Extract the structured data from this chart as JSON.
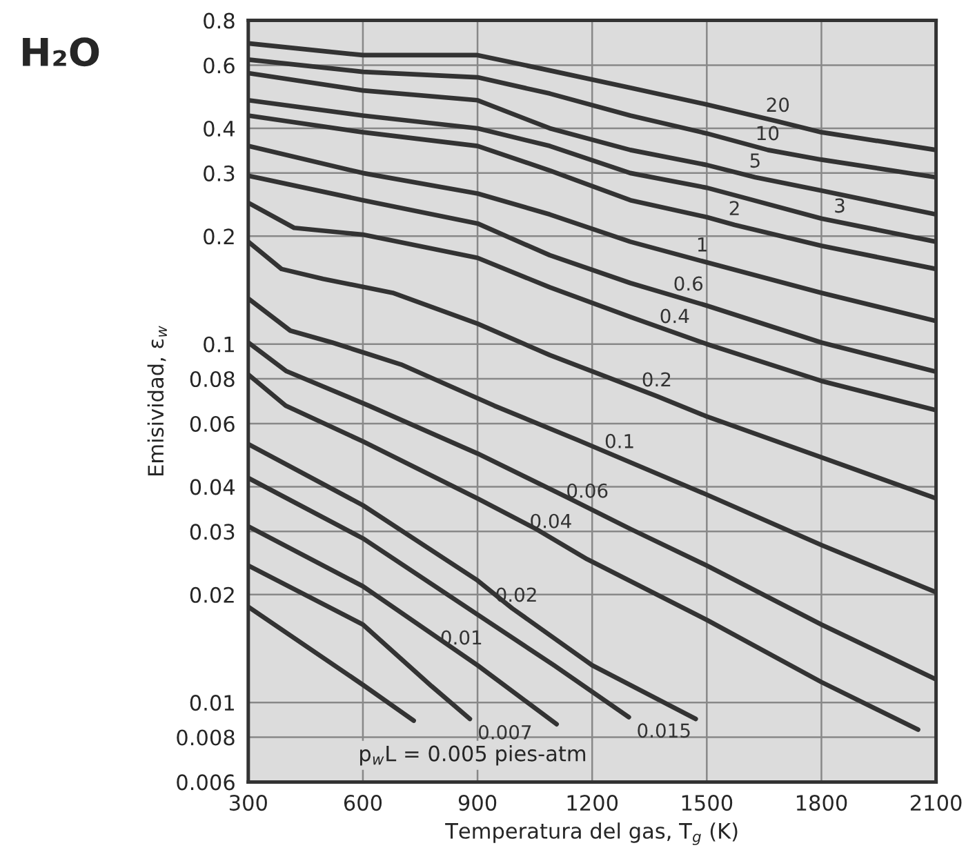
{
  "chart_data": {
    "type": "line",
    "title": "H₂O",
    "xlabel": "Temperatura del gas, T$_{g}$ (K)",
    "ylabel": "Emisividad, ε$_{w}$",
    "xlim": [
      300,
      2100
    ],
    "xticks": [
      300,
      600,
      900,
      1200,
      1500,
      1800,
      2100
    ],
    "ylim": [
      0.006,
      0.8
    ],
    "yticks": [
      0.006,
      0.008,
      0.01,
      0.02,
      0.03,
      0.04,
      0.06,
      0.08,
      0.1,
      0.2,
      0.3,
      0.4,
      0.6,
      0.8
    ],
    "log": "y",
    "grid": true,
    "legend": false,
    "marker": "none",
    "line_style": "solid",
    "annotations": [
      "p$_{w}$L = 0.005 pies-atm"
    ],
    "series": [
      {
        "name": "20",
        "color": "#333333",
        "x": [
          300,
          600,
          900,
          1089,
          1300,
          1500,
          1682,
          1800,
          2100
        ],
        "values": [
          0.69,
          0.64,
          0.64,
          0.58,
          0.519,
          0.466,
          0.419,
          0.39,
          0.348
        ]
      },
      {
        "name": "10",
        "color": "#333333",
        "x": [
          300,
          600,
          900,
          1089,
          1300,
          1500,
          1660,
          1800,
          2100
        ],
        "values": [
          0.622,
          0.575,
          0.555,
          0.5,
          0.434,
          0.387,
          0.348,
          0.327,
          0.292
        ]
      },
      {
        "name": "5",
        "color": "#333333",
        "x": [
          300,
          600,
          900,
          1089,
          1300,
          1500,
          1627,
          1800,
          2100
        ],
        "values": [
          0.57,
          0.51,
          0.479,
          0.4,
          0.348,
          0.316,
          0.292,
          0.268,
          0.23
        ]
      },
      {
        "name": "3",
        "color": "#333333",
        "x": [
          300,
          600,
          900,
          1089,
          1300,
          1500,
          1598,
          1800,
          2100
        ],
        "values": [
          0.479,
          0.434,
          0.4,
          0.357,
          0.3,
          0.273,
          0.256,
          0.224,
          0.193
        ]
      },
      {
        "name": "2",
        "color": "#333333",
        "x": [
          300,
          600,
          900,
          1089,
          1300,
          1500,
          1573,
          1800,
          2100
        ],
        "values": [
          0.434,
          0.39,
          0.357,
          0.305,
          0.252,
          0.226,
          0.215,
          0.188,
          0.162
        ]
      },
      {
        "name": "1",
        "color": "#333333",
        "x": [
          300,
          600,
          900,
          1089,
          1300,
          1500,
          1800,
          2100
        ],
        "values": [
          0.357,
          0.3,
          0.263,
          0.23,
          0.193,
          0.169,
          0.139,
          0.116
        ]
      },
      {
        "name": "0.6",
        "color": "#333333",
        "x": [
          300,
          600,
          900,
          1089,
          1300,
          1500,
          1800,
          2100
        ],
        "values": [
          0.295,
          0.252,
          0.217,
          0.177,
          0.148,
          0.128,
          0.101,
          0.0837
        ]
      },
      {
        "name": "0.4",
        "color": "#333333",
        "x": [
          300,
          420,
          600,
          900,
          1089,
          1300,
          1500,
          1800,
          2100
        ],
        "values": [
          0.248,
          0.211,
          0.202,
          0.174,
          0.144,
          0.119,
          0.1,
          0.0789,
          0.0654
        ]
      },
      {
        "name": "0.2",
        "color": "#333333",
        "x": [
          300,
          387,
          496,
          678,
          900,
          1089,
          1369,
          1500,
          1800,
          2100
        ],
        "values": [
          0.193,
          0.162,
          0.152,
          0.139,
          0.114,
          0.0932,
          0.0716,
          0.0628,
          0.0483,
          0.0371
        ]
      },
      {
        "name": "0.1",
        "color": "#333333",
        "x": [
          300,
          410,
          520,
          700,
          944,
          1162,
          1500,
          1800,
          2100
        ],
        "values": [
          0.134,
          0.109,
          0.101,
          0.0877,
          0.0673,
          0.054,
          0.038,
          0.0275,
          0.0203
        ]
      },
      {
        "name": "0.06",
        "color": "#333333",
        "x": [
          300,
          400,
          616,
          900,
          1136,
          1300,
          1500,
          1800,
          2100
        ],
        "values": [
          0.101,
          0.084,
          0.0673,
          0.0495,
          0.0373,
          0.0305,
          0.0241,
          0.0165,
          0.0116
        ]
      },
      {
        "name": "0.04",
        "color": "#333333",
        "x": [
          300,
          398,
          600,
          900,
          1053,
          1187,
          1500,
          1800,
          2053
        ],
        "values": [
          0.0822,
          0.0673,
          0.0535,
          0.0371,
          0.0305,
          0.0251,
          0.017,
          0.0114,
          0.0084
        ]
      },
      {
        "name": "0.02",
        "color": "#333333",
        "x": [
          300,
          600,
          900,
          991,
          1200,
          1471
        ],
        "values": [
          0.0526,
          0.0355,
          0.0219,
          0.0183,
          0.0127,
          0.009
        ]
      },
      {
        "name": "0.015",
        "color": "#333333",
        "x": [
          300,
          600,
          900,
          1100,
          1296
        ],
        "values": [
          0.0423,
          0.0287,
          0.0176,
          0.0127,
          0.0091
        ]
      },
      {
        "name": "0.01",
        "color": "#333333",
        "x": [
          300,
          600,
          900,
          1107
        ],
        "values": [
          0.031,
          0.0211,
          0.0127,
          0.0087
        ]
      },
      {
        "name": "0.007",
        "color": "#333333",
        "x": [
          300,
          600,
          780,
          880
        ],
        "values": [
          0.0241,
          0.0165,
          0.0111,
          0.009
        ]
      },
      {
        "color": "#333333",
        "x": [
          300,
          600,
          733
        ],
        "values": [
          0.0185,
          0.0112,
          0.0089
        ]
      }
    ]
  }
}
